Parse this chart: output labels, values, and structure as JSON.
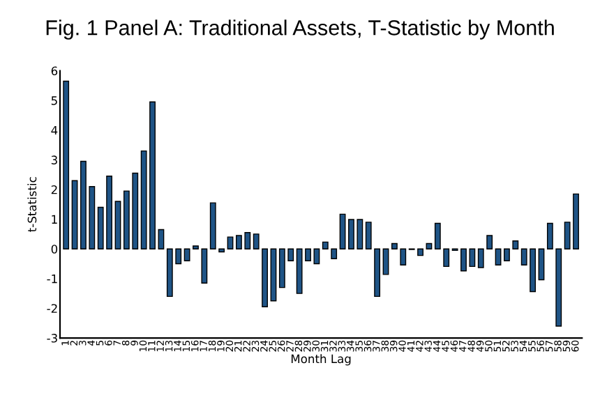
{
  "chart_data": {
    "type": "bar",
    "title": "Fig. 1 Panel A: Traditional Assets, T-Statistic by Month",
    "xlabel": "Month Lag",
    "ylabel": "t-Statistic",
    "categories": [
      "1",
      "2",
      "3",
      "4",
      "5",
      "6",
      "7",
      "8",
      "9",
      "10",
      "11",
      "12",
      "13",
      "14",
      "15",
      "16",
      "17",
      "18",
      "19",
      "20",
      "21",
      "22",
      "23",
      "24",
      "25",
      "26",
      "27",
      "28",
      "29",
      "30",
      "31",
      "32",
      "33",
      "34",
      "35",
      "36",
      "37",
      "38",
      "39",
      "40",
      "41",
      "42",
      "43",
      "44",
      "45",
      "46",
      "47",
      "48",
      "49",
      "50",
      "51",
      "52",
      "53",
      "54",
      "55",
      "56",
      "57",
      "58",
      "59",
      "60"
    ],
    "values": [
      5.65,
      2.3,
      2.95,
      2.1,
      1.4,
      2.45,
      1.6,
      1.95,
      2.55,
      3.3,
      4.95,
      0.65,
      -1.6,
      -0.5,
      -0.4,
      0.1,
      -1.15,
      1.55,
      -0.1,
      0.4,
      0.45,
      0.55,
      0.5,
      -1.95,
      -1.75,
      -1.3,
      -0.4,
      -1.5,
      -0.4,
      -0.5,
      0.23,
      -0.33,
      1.17,
      0.99,
      0.99,
      0.9,
      -1.6,
      -0.86,
      0.18,
      -0.54,
      -0.02,
      -0.22,
      0.18,
      0.86,
      -0.59,
      -0.05,
      -0.74,
      -0.59,
      -0.63,
      0.45,
      -0.54,
      -0.4,
      0.27,
      -0.54,
      -1.44,
      -1.04,
      0.86,
      -2.6,
      0.9,
      1.85
    ],
    "color": "#1f5486",
    "ylim": [
      -3,
      6
    ],
    "yticks": [
      -3,
      -2,
      -1,
      0,
      1,
      2,
      3,
      4,
      5,
      6
    ],
    "grid": false,
    "legend": false
  }
}
